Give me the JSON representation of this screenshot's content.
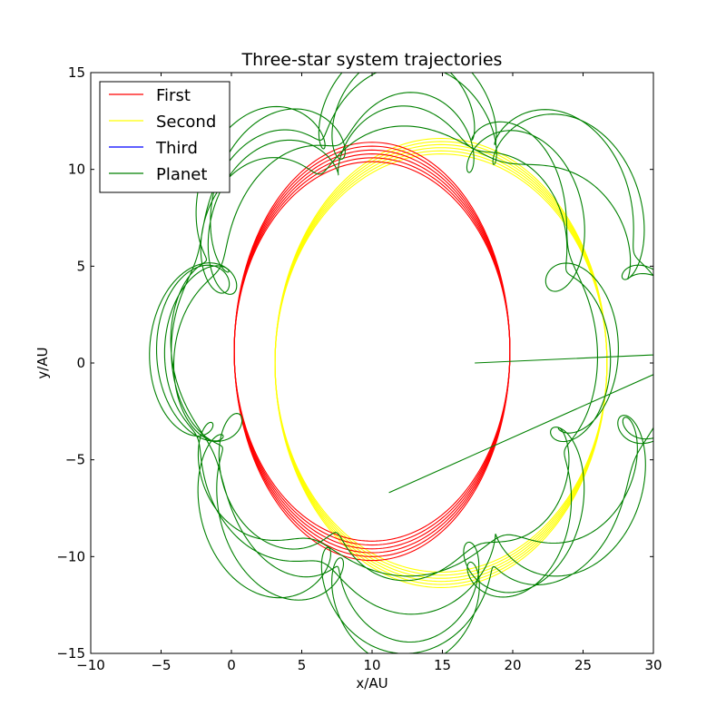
{
  "chart_data": {
    "type": "line",
    "title": "Three-star system trajectories",
    "xlabel": "x/AU",
    "ylabel": "y/AU",
    "xlim": [
      -10,
      30
    ],
    "ylim": [
      -15,
      15
    ],
    "xticks": [
      -10,
      -5,
      0,
      5,
      10,
      15,
      20,
      25,
      30
    ],
    "yticks": [
      -15,
      -10,
      -5,
      0,
      5,
      10,
      15
    ],
    "xtick_labels": [
      "−10",
      "−5",
      "0",
      "5",
      "10",
      "15",
      "20",
      "25",
      "30"
    ],
    "ytick_labels": [
      "−15",
      "−10",
      "−5",
      "0",
      "5",
      "10",
      "15"
    ],
    "grid": false,
    "legend_position": "top-left",
    "series": [
      {
        "name": "First",
        "color": "#ff0000",
        "trajectory": {
          "kind": "precessing-ellipse",
          "center": [
            10,
            0.6
          ],
          "semi_axis_x": 9.8,
          "semi_axis_y": [
            9.8,
            10.8
          ],
          "loops": 6
        }
      },
      {
        "name": "Second",
        "color": "#ffff00",
        "trajectory": {
          "kind": "precessing-ellipse",
          "center": [
            14.9,
            0
          ],
          "semi_axis_x": 11.8,
          "semi_axis_y": [
            10.8,
            11.6
          ],
          "loops": 6
        }
      },
      {
        "name": "Third",
        "color": "#0000ff",
        "trajectory": {
          "kind": "none"
        }
      },
      {
        "name": "Planet",
        "color": "#008000",
        "trajectory": {
          "kind": "looping-orbit",
          "center": [
            12.5,
            0.5
          ],
          "radius_x": [
            13.0,
            19.5
          ],
          "radius_y": [
            11.0,
            13.8
          ],
          "epicycle_radius": 2.4,
          "loops": 6,
          "epicycles_per_loop": 9,
          "start": [
            17.3,
            0.0
          ],
          "end": [
            11.2,
            -6.7
          ]
        }
      }
    ]
  }
}
